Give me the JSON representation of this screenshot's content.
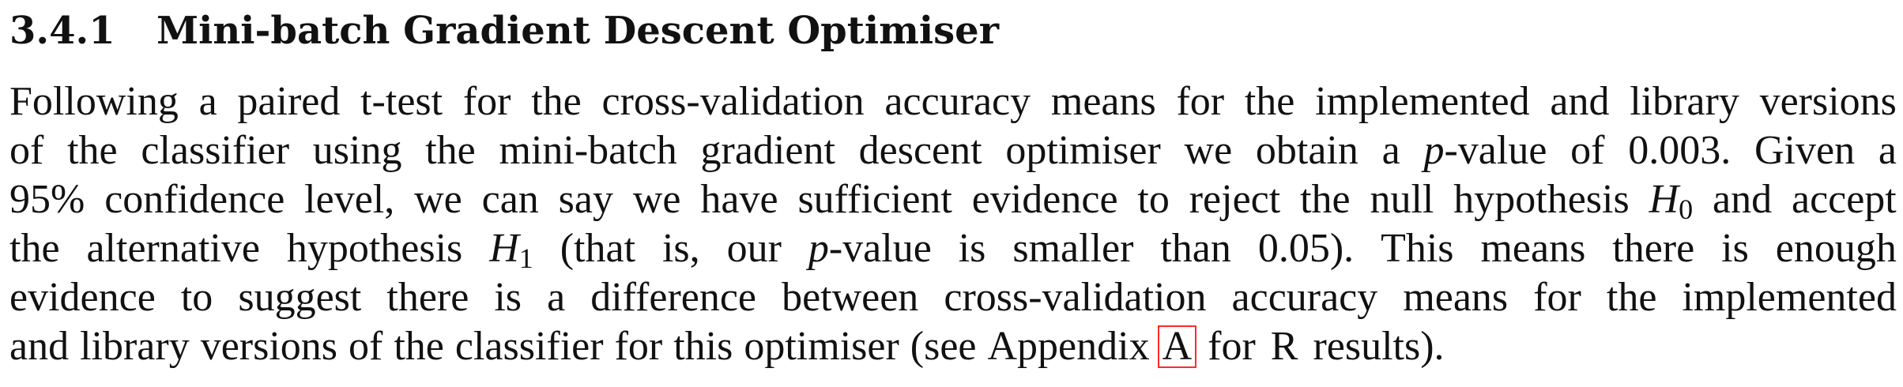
{
  "section": {
    "number": "3.4.1",
    "title": "Mini-batch Gradient Descent Optimiser"
  },
  "paragraph": {
    "lines": [
      [
        "Following",
        "a",
        "paired",
        "t-test",
        "for",
        "the",
        "cross-validation",
        "accuracy",
        "means",
        "for",
        "the",
        "implemented",
        "and",
        "library",
        "versions"
      ],
      [
        "of",
        "the",
        "classifier",
        "using",
        "the",
        "mini-batch",
        "gradient",
        "descent",
        "optimiser",
        "we",
        "obtain",
        "a"
      ],
      [
        "95%",
        "confidence",
        "level,",
        "we",
        "can",
        "say",
        "we",
        "have",
        "sufficient",
        "evidence",
        "to",
        "reject",
        "the",
        "null",
        "hypothesis"
      ],
      [
        "the",
        "alternative",
        "hypothesis"
      ],
      [
        "evidence",
        "to",
        "suggest",
        "there",
        "is",
        "a",
        "difference",
        "between",
        "cross-validation",
        "accuracy",
        "means",
        "for",
        "the",
        "implemented"
      ],
      [
        "and",
        "library",
        "versions",
        "of",
        "the",
        "classifier",
        "for",
        "this",
        "optimiser",
        "(see",
        "Appendix"
      ]
    ],
    "line2_rest": [
      "-value",
      "of",
      "0.003.",
      "Given",
      "a"
    ],
    "p_symbol": "p",
    "h0_symbol": "H",
    "h0_sub": "0",
    "h1_symbol": "H",
    "h1_sub": "1",
    "line3_rest": [
      "and",
      "accept"
    ],
    "line4_mid": [
      "(that",
      "is,",
      "our"
    ],
    "line4_rest": [
      "-value",
      "is",
      "smaller",
      "than",
      "0.05).",
      "This",
      "means",
      "there",
      "is",
      "enough"
    ],
    "appendix_ref": "A",
    "line6_rest": "for R results)."
  },
  "colors": {
    "text": "#111111",
    "link_box": "#ff2a2a"
  }
}
